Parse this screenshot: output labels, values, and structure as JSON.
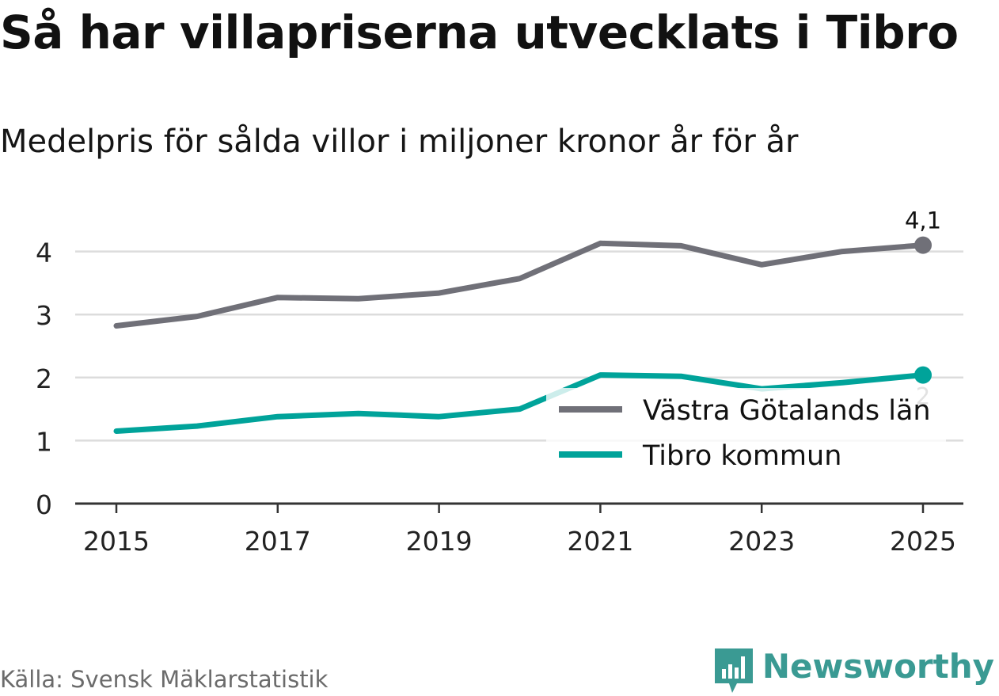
{
  "header": {
    "title": "Så har villapriserna utvecklats i Tibro",
    "subtitle": "Medelpris för sålda villor i miljoner kronor år för år"
  },
  "footer": {
    "source": "Källa: Svensk Mäklarstatistik",
    "brand": "Newsworthy"
  },
  "colors": {
    "series_gray": "#707078",
    "series_teal": "#00a39a",
    "brand": "#3a9a93",
    "grid": "#dcdcdc",
    "axis": "#333333"
  },
  "chart_data": {
    "type": "line",
    "x": [
      2015,
      2016,
      2017,
      2018,
      2019,
      2020,
      2021,
      2022,
      2023,
      2024,
      2025
    ],
    "x_tick_labels": [
      "2015",
      "2017",
      "2019",
      "2021",
      "2023",
      "2025"
    ],
    "y_tick_labels": [
      "0",
      "1",
      "2",
      "3",
      "4"
    ],
    "ylim": [
      0,
      4.45
    ],
    "grid": true,
    "legend_position": "bottom-right",
    "series": [
      {
        "name": "Västra Götalands län",
        "color": "#707078",
        "values": [
          2.82,
          2.97,
          3.27,
          3.25,
          3.34,
          3.57,
          4.13,
          4.09,
          3.79,
          4.0,
          4.1
        ],
        "end_label": "4,1"
      },
      {
        "name": "Tibro kommun",
        "color": "#00a39a",
        "values": [
          1.15,
          1.23,
          1.38,
          1.43,
          1.38,
          1.5,
          2.04,
          2.02,
          1.82,
          1.92,
          2.04
        ],
        "end_label": "2"
      }
    ]
  }
}
